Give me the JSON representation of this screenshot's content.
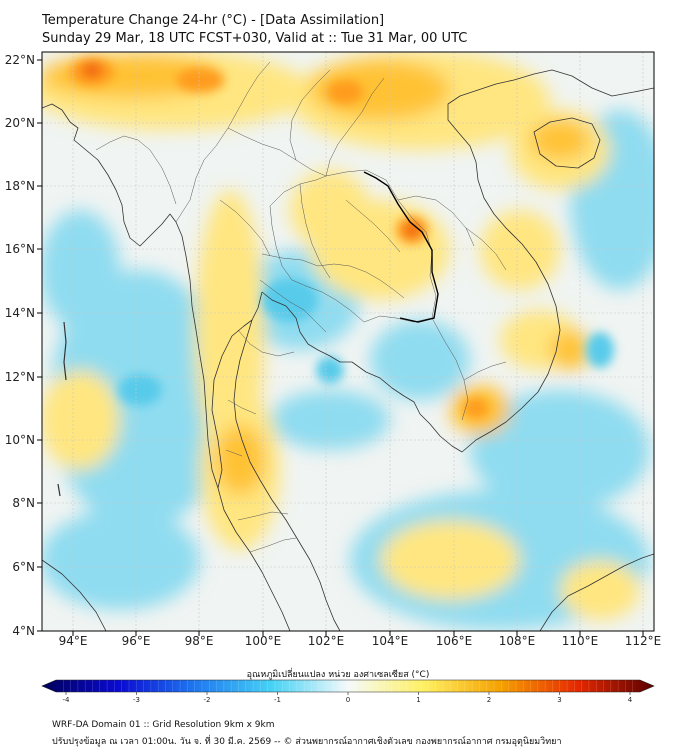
{
  "title_line1": "Temperature Change 24-hr (°C) - [Data Assimilation]",
  "title_line2": "Sunday 29 Mar, 18 UTC FCST+030, Valid at :: Tue 31 Mar, 00 UTC",
  "lat_labels": [
    "22°N",
    "20°N",
    "18°N",
    "16°N",
    "14°N",
    "12°N",
    "10°N",
    "8°N",
    "6°N",
    "4°N"
  ],
  "lon_labels": [
    "94°E",
    "96°E",
    "98°E",
    "100°E",
    "102°E",
    "104°E",
    "106°E",
    "108°E",
    "110°E",
    "112°E"
  ],
  "colorbar": {
    "label": "อุณหภูมิเปลี่ยนแปลง หน่วย องศาเซลเซียส (°C)",
    "ticks": [
      "-4",
      "-3",
      "-2",
      "-1",
      "0",
      "1",
      "2",
      "3",
      "4"
    ],
    "min": -4,
    "max": 4,
    "colors": [
      "#00005a",
      "#0a0ad2",
      "#1e78f0",
      "#46d2f5",
      "#f5fafa",
      "#fff060",
      "#f5a000",
      "#e62800",
      "#5a0000"
    ]
  },
  "field_colors": {
    "background": "#f0f4f2",
    "cool": "#8fdcf0",
    "cool_strong": "#58cbea",
    "warm": "#ffe680",
    "warm_strong": "#ffc234",
    "hot": "#ff9b1a",
    "hottest": "#f26a14"
  },
  "footer_line1": "WRF-DA Domain 01 :: Grid Resolution 9km x 9km",
  "footer_line2": "ปรับปรุงข้อมูล ณ เวลา 01:00น. วัน จ. ที่ 30 มี.ค. 2569 -- © ส่วนพยากรณ์อากาศเชิงตัวเลข กองพยากรณ์อากาศ กรมอุตุนิยมวิทยา"
}
